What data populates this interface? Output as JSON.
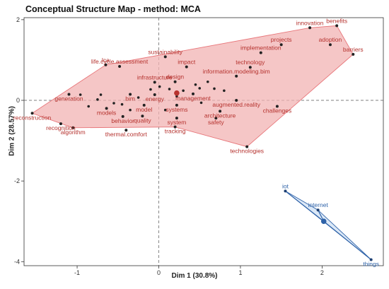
{
  "chart_data": {
    "type": "scatter",
    "title": "Conceptual Structure Map - method: MCA",
    "xlabel": "Dim 1 (30.8%)",
    "ylabel": "Dim 2 (28.57%)",
    "xlim": [
      -1.65,
      2.75
    ],
    "ylim": [
      -4.1,
      2.05
    ],
    "xticks": [
      "-1",
      "0",
      "1",
      "2"
    ],
    "yticks": [
      "-4",
      "-2",
      "0",
      "2"
    ],
    "grid": false,
    "clusters": [
      {
        "color": "#e8767a",
        "fill": "#f2b3b3",
        "centroid": {
          "x": 0.22,
          "y": 0.18
        },
        "points": [
          {
            "label": "innovation",
            "x": 1.85,
            "y": 1.8
          },
          {
            "label": "benefits",
            "x": 2.18,
            "y": 1.85
          },
          {
            "label": "projects",
            "x": 1.5,
            "y": 1.38
          },
          {
            "label": "adoption",
            "x": 2.1,
            "y": 1.38
          },
          {
            "label": "barriers",
            "x": 2.38,
            "y": 1.14
          },
          {
            "label": "lca",
            "x": -0.65,
            "y": 0.88
          },
          {
            "label": "sustainability",
            "x": 0.08,
            "y": 1.08
          },
          {
            "label": "implementation",
            "x": 1.25,
            "y": 1.18
          },
          {
            "label": "impact",
            "x": 0.34,
            "y": 0.83
          },
          {
            "label": "technology",
            "x": 1.12,
            "y": 0.82
          },
          {
            "label": "life.cycle.assessment",
            "x": -0.48,
            "y": 0.84
          },
          {
            "label": "design",
            "x": 0.2,
            "y": 0.46
          },
          {
            "label": "infrastructure",
            "x": -0.05,
            "y": 0.45
          },
          {
            "label": "information.modeling.bim",
            "x": 0.95,
            "y": 0.6
          },
          {
            "label": "generation",
            "x": -1.1,
            "y": 0.15
          },
          {
            "label": "bim",
            "x": -0.35,
            "y": 0.15
          },
          {
            "label": "energy",
            "x": -0.05,
            "y": 0.14
          },
          {
            "label": "management",
            "x": 0.42,
            "y": 0.16
          },
          {
            "label": "augmented.reality",
            "x": 0.95,
            "y": 0.0
          },
          {
            "label": "reconstruction",
            "x": -1.55,
            "y": -0.32
          },
          {
            "label": "models",
            "x": -0.64,
            "y": -0.2
          },
          {
            "label": "model",
            "x": -0.18,
            "y": -0.12
          },
          {
            "label": "systems",
            "x": 0.22,
            "y": -0.12
          },
          {
            "label": "challenges",
            "x": 1.45,
            "y": -0.15
          },
          {
            "label": "recognition",
            "x": -1.2,
            "y": -0.58
          },
          {
            "label": "behavior",
            "x": -0.44,
            "y": -0.4
          },
          {
            "label": "quality",
            "x": -0.2,
            "y": -0.39
          },
          {
            "label": "architecture",
            "x": 0.75,
            "y": -0.27
          },
          {
            "label": "algorithm",
            "x": -1.05,
            "y": -0.68
          },
          {
            "label": "thermal.comfort",
            "x": -0.4,
            "y": -0.74
          },
          {
            "label": "system",
            "x": 0.22,
            "y": -0.44
          },
          {
            "label": "safety",
            "x": 0.7,
            "y": -0.44
          },
          {
            "label": "tracking",
            "x": 0.2,
            "y": -0.66
          },
          {
            "label": "technologies",
            "x": 1.08,
            "y": -1.15
          }
        ],
        "hull": [
          "reconstruction",
          "lca",
          "innovation",
          "benefits",
          "barriers",
          "technologies",
          "tracking",
          "algorithm"
        ]
      },
      {
        "color": "#2e62a8",
        "fill": "#cfe0f4",
        "centroid": {
          "x": 2.02,
          "y": -3.0
        },
        "points": [
          {
            "label": "iot",
            "x": 1.55,
            "y": -2.25
          },
          {
            "label": "internet",
            "x": 1.95,
            "y": -2.72
          },
          {
            "label": "things",
            "x": 2.6,
            "y": -3.95
          }
        ],
        "hull": [
          "iot",
          "internet",
          "things"
        ]
      }
    ],
    "background_points": [
      {
        "x": -0.96,
        "y": 0.14
      },
      {
        "x": -0.86,
        "y": -0.15
      },
      {
        "x": -0.71,
        "y": 0.14
      },
      {
        "x": -0.55,
        "y": -0.07
      },
      {
        "x": -0.45,
        "y": -0.1
      },
      {
        "x": -0.25,
        "y": 0.07
      },
      {
        "x": -0.1,
        "y": 0.27
      },
      {
        "x": 0.01,
        "y": 0.34
      },
      {
        "x": 0.13,
        "y": 0.28
      },
      {
        "x": 0.22,
        "y": 0.1
      },
      {
        "x": 0.3,
        "y": 0.24
      },
      {
        "x": 0.45,
        "y": 0.39
      },
      {
        "x": 0.5,
        "y": 0.3
      },
      {
        "x": 0.6,
        "y": 0.46
      },
      {
        "x": 0.68,
        "y": 0.29
      },
      {
        "x": 0.08,
        "y": -0.24
      },
      {
        "x": -0.35,
        "y": -0.24
      },
      {
        "x": 0.52,
        "y": -0.06
      },
      {
        "x": 0.8,
        "y": 0.24
      },
      {
        "x": -0.75,
        "y": 0.02
      }
    ]
  }
}
